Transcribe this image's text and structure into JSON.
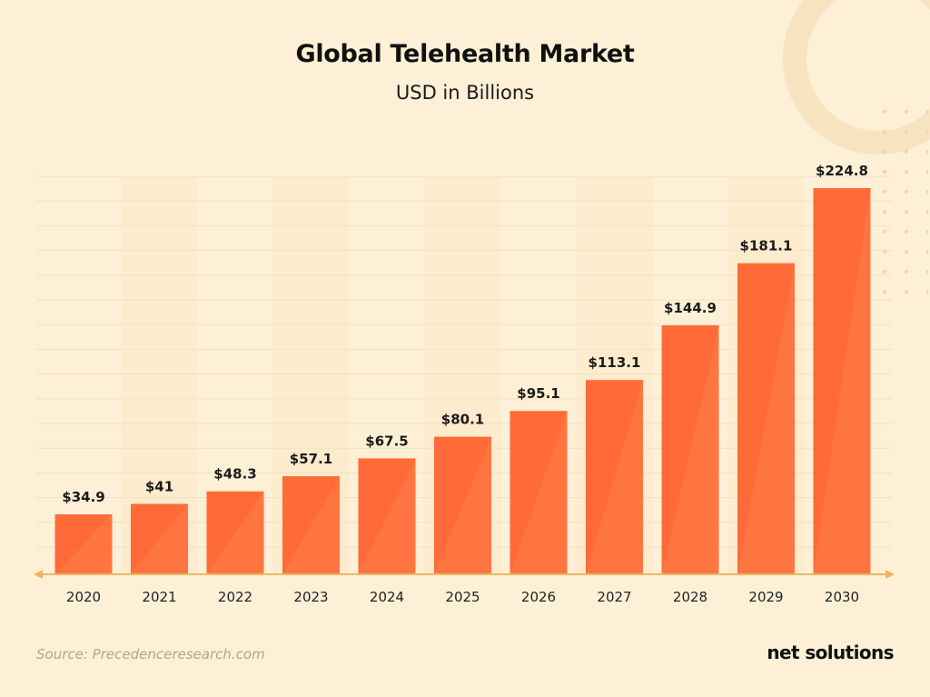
{
  "chart_data": {
    "type": "bar",
    "title": "Global Telehealth Market",
    "subtitle": "USD in Billions",
    "categories": [
      "2020",
      "2021",
      "2022",
      "2023",
      "2024",
      "2025",
      "2026",
      "2027",
      "2028",
      "2029",
      "2030"
    ],
    "values": [
      34.9,
      41,
      48.3,
      57.1,
      67.5,
      80.1,
      95.1,
      113.1,
      144.9,
      181.1,
      224.8
    ],
    "value_labels": [
      "$34.9",
      "$41",
      "$48.3",
      "$57.1",
      "$67.5",
      "$80.1",
      "$95.1",
      "$113.1",
      "$144.9",
      "$181.1",
      "$224.8"
    ],
    "xlabel": "",
    "ylabel": "",
    "ylim": [
      0,
      224.8
    ],
    "grid": true,
    "legend": "none"
  },
  "colors": {
    "background": "#fdf0d6",
    "bar": "#ff6a38",
    "bar_highlight": "#ff7d4b",
    "axis": "#e9b865",
    "grid": "#f1e1c1",
    "column_band": "#fbe7c4"
  },
  "source": "Source: Precedenceresearch.com",
  "brand": "net solutions"
}
